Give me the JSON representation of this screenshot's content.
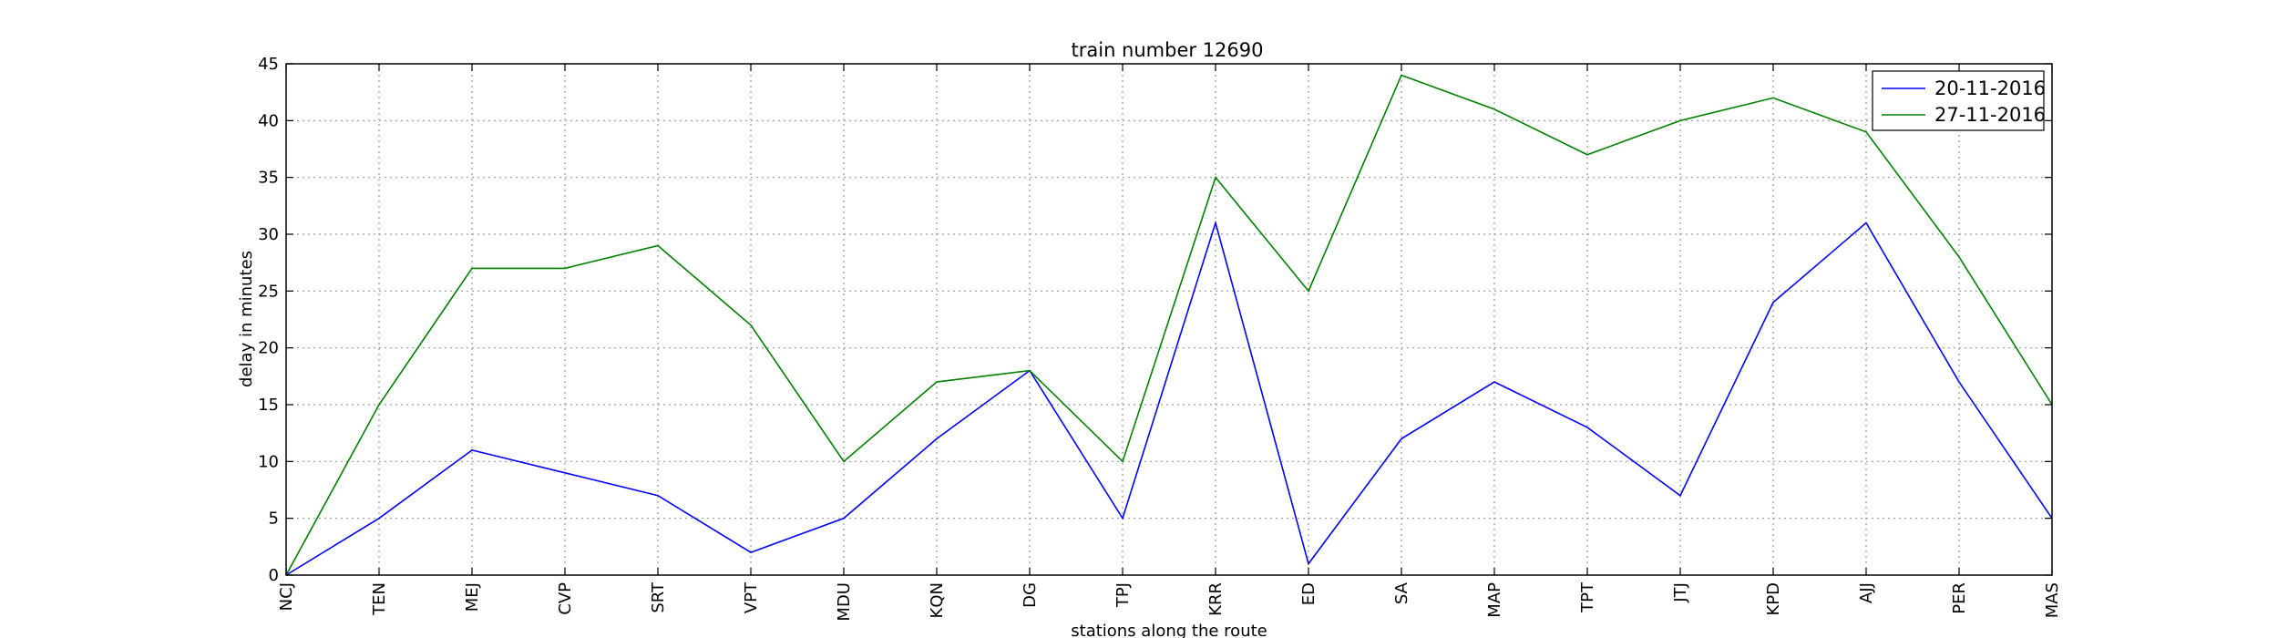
{
  "chart_data": {
    "type": "line",
    "title": "train number 12690",
    "xlabel": "stations along the route",
    "ylabel": "delay in minutes",
    "categories": [
      "NCJ",
      "TEN",
      "MEJ",
      "CVP",
      "SRT",
      "VPT",
      "MDU",
      "KQN",
      "DG",
      "TPJ",
      "KRR",
      "ED",
      "SA",
      "MAP",
      "TPT",
      "JTJ",
      "KPD",
      "AJJ",
      "PER",
      "MAS"
    ],
    "ylim": [
      0,
      45
    ],
    "yticks": [
      0,
      5,
      10,
      15,
      20,
      25,
      30,
      35,
      40,
      45
    ],
    "grid": true,
    "legend_position": "top-right",
    "series": [
      {
        "name": "20-11-2016",
        "color": "#0000ff",
        "values": [
          0,
          5,
          11,
          9,
          7,
          2,
          5,
          12,
          18,
          5,
          31,
          1,
          12,
          17,
          13,
          7,
          24,
          31,
          17,
          5
        ]
      },
      {
        "name": "27-11-2016",
        "color": "#008000",
        "values": [
          0,
          15,
          27,
          27,
          29,
          22,
          10,
          17,
          18,
          10,
          35,
          25,
          44,
          41,
          37,
          40,
          42,
          39,
          28,
          15
        ]
      }
    ]
  }
}
